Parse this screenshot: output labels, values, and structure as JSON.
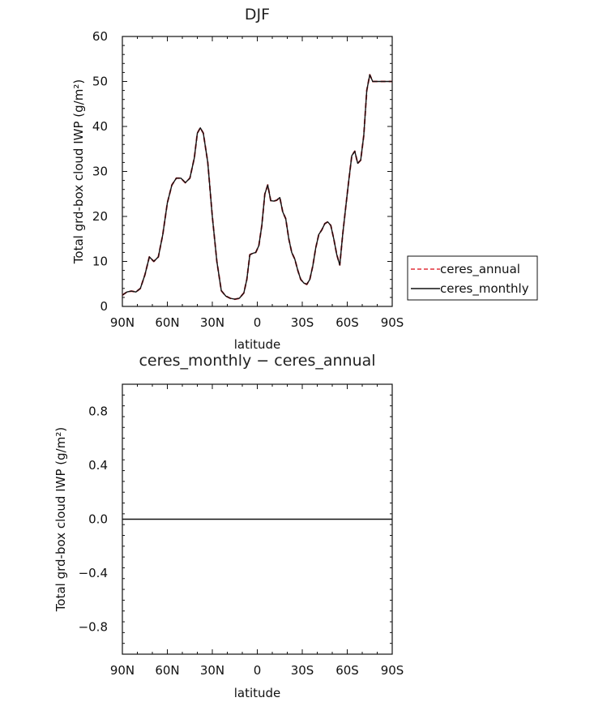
{
  "chart_data": [
    {
      "type": "line",
      "title": "DJF",
      "xlabel": "latitude",
      "ylabel": "Total grd-box cloud IWP (g/m²)",
      "xlim": [
        -90,
        90
      ],
      "ylim": [
        0,
        60
      ],
      "x_ticks": [
        -90,
        -60,
        -30,
        0,
        30,
        60,
        90
      ],
      "x_tick_labels": [
        "90N",
        "60N",
        "30N",
        "0",
        "30S",
        "60S",
        "90S"
      ],
      "y_ticks": [
        0,
        10,
        20,
        30,
        40,
        50,
        60
      ],
      "y_tick_labels": [
        "0",
        "10",
        "20",
        "30",
        "40",
        "50",
        "60"
      ],
      "x": [
        -90,
        -87,
        -84,
        -81,
        -78,
        -75,
        -72,
        -69,
        -66,
        -63,
        -60,
        -57,
        -54,
        -51,
        -48,
        -45,
        -42,
        -40,
        -38,
        -36,
        -33,
        -30,
        -27,
        -24,
        -21,
        -18,
        -15,
        -12,
        -9,
        -7,
        -5,
        -3,
        -1,
        1,
        3,
        5,
        7,
        9,
        11,
        13,
        15,
        17,
        19,
        21,
        23,
        25,
        27,
        29,
        31,
        33,
        35,
        37,
        39,
        41,
        43,
        45,
        47,
        49,
        51,
        53,
        55,
        57,
        59,
        61,
        63,
        65,
        67,
        69,
        71,
        73,
        75,
        77,
        79,
        81,
        83,
        85,
        87,
        88,
        90
      ],
      "series": [
        {
          "name": "ceres_annual",
          "color": "#e0303a",
          "dash": "dashed",
          "values": [
            2.5,
            3.2,
            3.4,
            3.2,
            4.0,
            7.0,
            11.0,
            10.0,
            11.0,
            16.0,
            23.0,
            27.0,
            28.5,
            28.5,
            27.5,
            28.5,
            33.0,
            38.5,
            39.7,
            38.5,
            32.0,
            20.0,
            10.0,
            3.5,
            2.3,
            1.8,
            1.6,
            1.8,
            3.0,
            6.0,
            11.5,
            11.8,
            12.0,
            13.5,
            18.0,
            25.0,
            27.0,
            23.5,
            23.4,
            23.6,
            24.2,
            21.0,
            19.5,
            15.0,
            12.0,
            10.5,
            8.0,
            6.0,
            5.2,
            4.9,
            6.0,
            9.0,
            13.0,
            16.0,
            17.0,
            18.4,
            18.8,
            18.0,
            15.0,
            11.5,
            9.2,
            16.0,
            22.0,
            28.0,
            33.5,
            34.5,
            31.8,
            32.5,
            38.0,
            48.0,
            51.5,
            50.0,
            50.0,
            50.0,
            50.0,
            50.0,
            50.0,
            50.0,
            50.0
          ]
        },
        {
          "name": "ceres_monthly",
          "color": "#111111",
          "dash": "solid",
          "values": [
            2.5,
            3.2,
            3.4,
            3.2,
            4.0,
            7.0,
            11.0,
            10.0,
            11.0,
            16.0,
            23.0,
            27.0,
            28.5,
            28.5,
            27.5,
            28.5,
            33.0,
            38.5,
            39.7,
            38.5,
            32.0,
            20.0,
            10.0,
            3.5,
            2.3,
            1.8,
            1.6,
            1.8,
            3.0,
            6.0,
            11.5,
            11.8,
            12.0,
            13.5,
            18.0,
            25.0,
            27.0,
            23.5,
            23.4,
            23.6,
            24.2,
            21.0,
            19.5,
            15.0,
            12.0,
            10.5,
            8.0,
            6.0,
            5.2,
            4.9,
            6.0,
            9.0,
            13.0,
            16.0,
            17.0,
            18.4,
            18.8,
            18.0,
            15.0,
            11.5,
            9.2,
            16.0,
            22.0,
            28.0,
            33.5,
            34.5,
            31.8,
            32.5,
            38.0,
            48.0,
            51.5,
            50.0,
            50.0,
            50.0,
            50.0,
            50.0,
            50.0,
            50.0,
            50.0
          ]
        }
      ],
      "legend": {
        "placement": "right",
        "entries": [
          {
            "label": "ceres_annual",
            "color": "#e0303a",
            "dash": "dashed"
          },
          {
            "label": "ceres_monthly",
            "color": "#111111",
            "dash": "solid"
          }
        ]
      }
    },
    {
      "type": "line",
      "title": "ceres_monthly − ceres_annual",
      "xlabel": "latitude",
      "ylabel": "Total grd-box cloud IWP (g/m²)",
      "xlim": [
        -90,
        90
      ],
      "ylim": [
        -1.0,
        1.0
      ],
      "x_ticks": [
        -90,
        -60,
        -30,
        0,
        30,
        60,
        90
      ],
      "x_tick_labels": [
        "90N",
        "60N",
        "30N",
        "0",
        "30S",
        "60S",
        "90S"
      ],
      "y_ticks": [
        -0.8,
        -0.4,
        0.0,
        0.4,
        0.8
      ],
      "y_tick_labels": [
        "−0.8",
        "−0.4",
        "0.0",
        "0.4",
        "0.8"
      ],
      "x": [
        -90,
        90
      ],
      "series": [
        {
          "color": "#111111",
          "dash": "solid",
          "values": [
            0.0,
            0.0
          ]
        }
      ]
    }
  ]
}
